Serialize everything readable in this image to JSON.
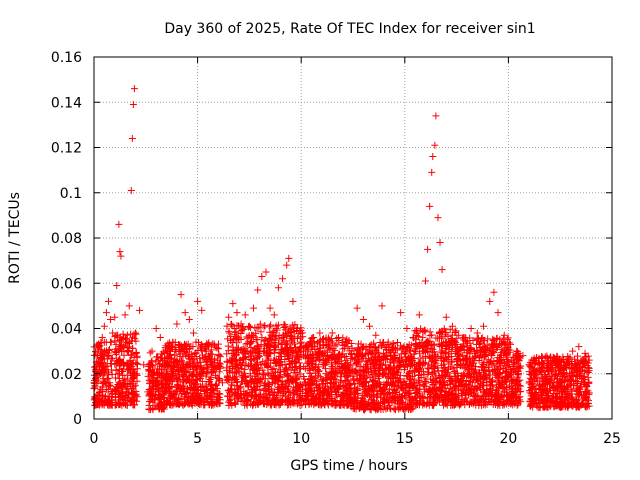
{
  "chart_data": {
    "type": "scatter",
    "title": "Day 360 of 2025, Rate Of TEC Index for receiver sin1",
    "xlabel": "GPS time / hours",
    "ylabel": "ROTI / TECUs",
    "xlim": [
      0,
      25
    ],
    "ylim": [
      0,
      0.16
    ],
    "xticks": [
      0,
      5,
      10,
      15,
      20,
      25
    ],
    "yticks": [
      0,
      0.02,
      0.04,
      0.06,
      0.08,
      0.1,
      0.12,
      0.14,
      0.16
    ],
    "xtick_labels": [
      "0",
      "5",
      "10",
      "15",
      "20",
      "25"
    ],
    "ytick_labels": [
      "0",
      "0.02",
      "0.04",
      "0.06",
      "0.08",
      "0.1",
      "0.12",
      "0.14",
      "0.16"
    ],
    "grid": true,
    "marker": "+",
    "color": "#ff0000",
    "series": [
      {
        "points": [
          [
            0.0,
            0.016
          ],
          [
            0.1,
            0.022
          ],
          [
            0.2,
            0.019
          ],
          [
            0.3,
            0.028
          ],
          [
            0.4,
            0.036
          ],
          [
            0.5,
            0.041
          ],
          [
            0.6,
            0.047
          ],
          [
            0.7,
            0.052
          ],
          [
            0.8,
            0.044
          ],
          [
            0.9,
            0.038
          ],
          [
            1.0,
            0.045
          ],
          [
            1.1,
            0.059
          ],
          [
            1.2,
            0.086
          ],
          [
            1.3,
            0.072
          ],
          [
            1.25,
            0.074
          ],
          [
            1.5,
            0.046
          ],
          [
            1.7,
            0.05
          ],
          [
            1.8,
            0.101
          ],
          [
            1.85,
            0.124
          ],
          [
            1.9,
            0.139
          ],
          [
            1.95,
            0.146
          ],
          [
            2.0,
            0.038
          ],
          [
            2.2,
            0.048
          ],
          [
            2.4,
            0.024
          ],
          [
            2.6,
            0.012
          ],
          [
            2.8,
            0.03
          ],
          [
            3.0,
            0.04
          ],
          [
            3.2,
            0.036
          ],
          [
            3.4,
            0.026
          ],
          [
            3.6,
            0.032
          ],
          [
            3.8,
            0.034
          ],
          [
            4.0,
            0.042
          ],
          [
            4.2,
            0.055
          ],
          [
            4.4,
            0.047
          ],
          [
            4.6,
            0.044
          ],
          [
            4.8,
            0.038
          ],
          [
            5.0,
            0.052
          ],
          [
            5.2,
            0.048
          ],
          [
            5.4,
            0.032
          ],
          [
            5.6,
            0.026
          ],
          [
            5.8,
            0.022
          ],
          [
            6.0,
            0.018
          ],
          [
            6.2,
            0.016
          ],
          [
            6.5,
            0.045
          ],
          [
            6.7,
            0.051
          ],
          [
            6.9,
            0.047
          ],
          [
            7.1,
            0.042
          ],
          [
            7.3,
            0.046
          ],
          [
            7.5,
            0.041
          ],
          [
            7.7,
            0.049
          ],
          [
            7.9,
            0.057
          ],
          [
            8.1,
            0.063
          ],
          [
            8.3,
            0.065
          ],
          [
            8.5,
            0.049
          ],
          [
            8.7,
            0.046
          ],
          [
            8.9,
            0.058
          ],
          [
            9.1,
            0.062
          ],
          [
            9.3,
            0.068
          ],
          [
            9.4,
            0.071
          ],
          [
            9.6,
            0.052
          ],
          [
            9.8,
            0.04
          ],
          [
            10.0,
            0.034
          ],
          [
            10.3,
            0.032
          ],
          [
            10.6,
            0.036
          ],
          [
            10.9,
            0.038
          ],
          [
            11.2,
            0.034
          ],
          [
            11.5,
            0.038
          ],
          [
            11.8,
            0.036
          ],
          [
            12.1,
            0.033
          ],
          [
            12.4,
            0.029
          ],
          [
            12.7,
            0.049
          ],
          [
            13.0,
            0.044
          ],
          [
            13.3,
            0.041
          ],
          [
            13.6,
            0.037
          ],
          [
            13.9,
            0.05
          ],
          [
            14.2,
            0.034
          ],
          [
            14.5,
            0.028
          ],
          [
            14.8,
            0.047
          ],
          [
            15.1,
            0.04
          ],
          [
            15.4,
            0.036
          ],
          [
            15.7,
            0.046
          ],
          [
            16.0,
            0.061
          ],
          [
            16.1,
            0.075
          ],
          [
            16.2,
            0.094
          ],
          [
            16.3,
            0.109
          ],
          [
            16.35,
            0.116
          ],
          [
            16.45,
            0.121
          ],
          [
            16.5,
            0.134
          ],
          [
            16.6,
            0.089
          ],
          [
            16.7,
            0.078
          ],
          [
            16.8,
            0.066
          ],
          [
            17.0,
            0.045
          ],
          [
            17.3,
            0.041
          ],
          [
            17.6,
            0.037
          ],
          [
            17.9,
            0.036
          ],
          [
            18.2,
            0.04
          ],
          [
            18.5,
            0.038
          ],
          [
            18.8,
            0.041
          ],
          [
            19.1,
            0.052
          ],
          [
            19.3,
            0.056
          ],
          [
            19.5,
            0.047
          ],
          [
            19.8,
            0.037
          ],
          [
            20.1,
            0.033
          ],
          [
            20.4,
            0.03
          ],
          [
            20.7,
            0.028
          ],
          [
            21.0,
            0.024
          ],
          [
            21.3,
            0.021
          ],
          [
            21.6,
            0.025
          ],
          [
            21.9,
            0.023
          ],
          [
            22.2,
            0.027
          ],
          [
            22.5,
            0.025
          ],
          [
            22.8,
            0.024
          ],
          [
            23.1,
            0.03
          ],
          [
            23.4,
            0.032
          ],
          [
            23.7,
            0.029
          ],
          [
            23.9,
            0.026
          ]
        ]
      }
    ],
    "dense_band": [
      [
        0.0,
        0.9,
        0.006,
        0.034
      ],
      [
        1.0,
        2.1,
        0.006,
        0.038
      ],
      [
        2.6,
        3.4,
        0.004,
        0.03
      ],
      [
        3.4,
        6.1,
        0.006,
        0.034
      ],
      [
        6.4,
        10.1,
        0.006,
        0.042
      ],
      [
        10.1,
        12.4,
        0.006,
        0.036
      ],
      [
        12.4,
        15.4,
        0.004,
        0.034
      ],
      [
        15.4,
        17.5,
        0.006,
        0.04
      ],
      [
        17.5,
        20.1,
        0.006,
        0.036
      ],
      [
        20.1,
        20.6,
        0.006,
        0.03
      ],
      [
        21.0,
        23.9,
        0.005,
        0.028
      ]
    ]
  }
}
